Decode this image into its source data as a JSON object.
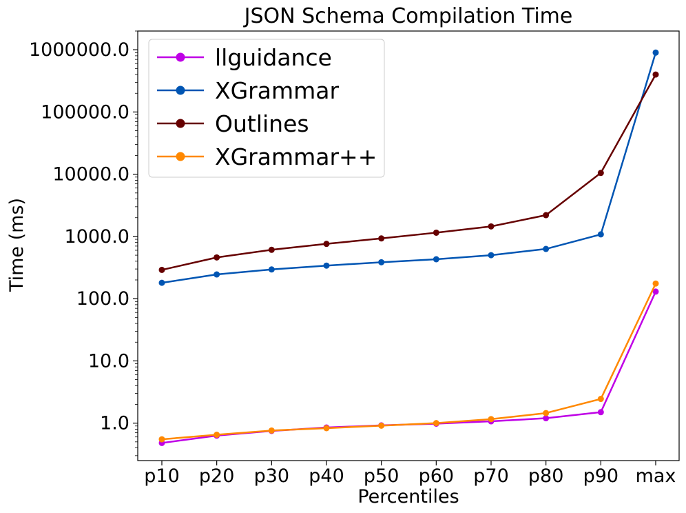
{
  "chart_data": {
    "type": "line",
    "title": "JSON Schema Compilation Time",
    "xlabel": "Percentiles",
    "ylabel": "Time (ms)",
    "yscale": "log",
    "ylim": [
      0.25,
      2000000
    ],
    "categories": [
      "p10",
      "p20",
      "p30",
      "p40",
      "p50",
      "p60",
      "p70",
      "p80",
      "p90",
      "max"
    ],
    "yticks": [
      1,
      10,
      100,
      1000,
      10000,
      100000,
      1000000
    ],
    "ytick_labels": [
      "1.0",
      "10.0",
      "100.0",
      "1000.0",
      "10000.0",
      "100000.0",
      "1000000.0"
    ],
    "legend_position": "upper-left",
    "series": [
      {
        "name": "llguidance",
        "color": "#bf00e6",
        "values": [
          0.48,
          0.63,
          0.75,
          0.85,
          0.92,
          0.98,
          1.07,
          1.2,
          1.5,
          130
        ]
      },
      {
        "name": "XGrammar",
        "color": "#0055b3",
        "values": [
          180,
          245,
          295,
          340,
          385,
          430,
          500,
          630,
          1080,
          900000
        ]
      },
      {
        "name": "Outlines",
        "color": "#660000",
        "values": [
          290,
          460,
          610,
          760,
          930,
          1150,
          1450,
          2200,
          10500,
          400000
        ]
      },
      {
        "name": "XGrammar++",
        "color": "#ff8800",
        "values": [
          0.55,
          0.65,
          0.76,
          0.83,
          0.91,
          1.0,
          1.16,
          1.45,
          2.45,
          175
        ]
      }
    ]
  }
}
